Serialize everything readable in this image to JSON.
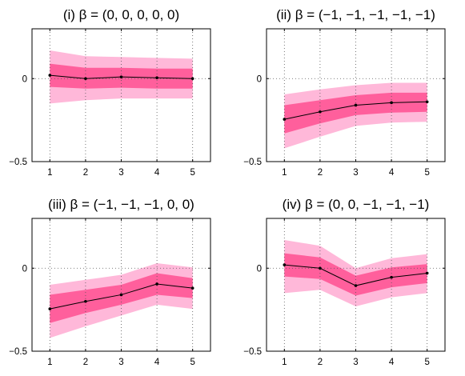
{
  "chart_data": [
    {
      "type": "line",
      "title": "(i) β = (0, 0, 0, 0, 0)",
      "x": [
        1,
        2,
        3,
        4,
        5
      ],
      "xticks": [
        "1",
        "2",
        "3",
        "4",
        "5"
      ],
      "ylim": [
        -0.5,
        0.3
      ],
      "yticks": [
        {
          "value": 0,
          "label": "0"
        },
        {
          "value": -0.5,
          "label": "−0.5"
        }
      ],
      "grid": "vertical dotted",
      "center": [
        0.02,
        0.0,
        0.01,
        0.005,
        0.0
      ],
      "inner_band": {
        "lower": [
          -0.05,
          -0.06,
          -0.055,
          -0.06,
          -0.06
        ],
        "upper": [
          0.09,
          0.065,
          0.065,
          0.06,
          0.06
        ]
      },
      "outer_band": {
        "lower": [
          -0.15,
          -0.13,
          -0.12,
          -0.12,
          -0.12
        ],
        "upper": [
          0.17,
          0.135,
          0.13,
          0.125,
          0.12
        ]
      },
      "colors": {
        "outer": "#ffb8d9",
        "inner": "#ff5f9c",
        "line": "#000000"
      }
    },
    {
      "type": "line",
      "title": "(ii) β = (−1, −1, −1, −1, −1)",
      "x": [
        1,
        2,
        3,
        4,
        5
      ],
      "xticks": [
        "1",
        "2",
        "3",
        "4",
        "5"
      ],
      "ylim": [
        -0.5,
        0.3
      ],
      "yticks": [
        {
          "value": 0,
          "label": "0"
        },
        {
          "value": -0.5,
          "label": "−0.5"
        }
      ],
      "grid": "vertical dotted",
      "center": [
        -0.245,
        -0.2,
        -0.16,
        -0.145,
        -0.14
      ],
      "inner_band": {
        "lower": [
          -0.33,
          -0.27,
          -0.22,
          -0.205,
          -0.2
        ],
        "upper": [
          -0.16,
          -0.13,
          -0.1,
          -0.085,
          -0.085
        ]
      },
      "outer_band": {
        "lower": [
          -0.42,
          -0.35,
          -0.285,
          -0.265,
          -0.26
        ],
        "upper": [
          -0.095,
          -0.065,
          -0.04,
          -0.025,
          -0.025
        ]
      },
      "colors": {
        "outer": "#ffb8d9",
        "inner": "#ff5f9c",
        "line": "#000000"
      }
    },
    {
      "type": "line",
      "title": "(iii) β = (−1, −1, −1, 0, 0)",
      "x": [
        1,
        2,
        3,
        4,
        5
      ],
      "xticks": [
        "1",
        "2",
        "3",
        "4",
        "5"
      ],
      "ylim": [
        -0.5,
        0.3
      ],
      "yticks": [
        {
          "value": 0,
          "label": "0"
        },
        {
          "value": -0.5,
          "label": "−0.5"
        }
      ],
      "grid": "vertical dotted",
      "center": [
        -0.245,
        -0.2,
        -0.16,
        -0.095,
        -0.12
      ],
      "inner_band": {
        "lower": [
          -0.33,
          -0.27,
          -0.22,
          -0.16,
          -0.18
        ],
        "upper": [
          -0.16,
          -0.13,
          -0.1,
          -0.03,
          -0.06
        ]
      },
      "outer_band": {
        "lower": [
          -0.42,
          -0.35,
          -0.285,
          -0.22,
          -0.245
        ],
        "upper": [
          -0.1,
          -0.07,
          -0.04,
          0.03,
          0.005
        ]
      },
      "colors": {
        "outer": "#ffb8d9",
        "inner": "#ff5f9c",
        "line": "#000000"
      }
    },
    {
      "type": "line",
      "title": "(iv) β = (0, 0, −1, −1, −1)",
      "x": [
        1,
        2,
        3,
        4,
        5
      ],
      "xticks": [
        "1",
        "2",
        "3",
        "4",
        "5"
      ],
      "ylim": [
        -0.5,
        0.3
      ],
      "yticks": [
        {
          "value": 0,
          "label": "0"
        },
        {
          "value": -0.5,
          "label": "−0.5"
        }
      ],
      "grid": "vertical dotted",
      "center": [
        0.02,
        0.0,
        -0.105,
        -0.055,
        -0.03
      ],
      "inner_band": {
        "lower": [
          -0.05,
          -0.065,
          -0.165,
          -0.115,
          -0.09
        ],
        "upper": [
          0.09,
          0.065,
          -0.045,
          0.005,
          0.025
        ]
      },
      "outer_band": {
        "lower": [
          -0.15,
          -0.13,
          -0.23,
          -0.175,
          -0.15
        ],
        "upper": [
          0.17,
          0.135,
          0.0,
          0.06,
          0.085
        ]
      },
      "colors": {
        "outer": "#ffb8d9",
        "inner": "#ff5f9c",
        "line": "#000000"
      }
    }
  ]
}
